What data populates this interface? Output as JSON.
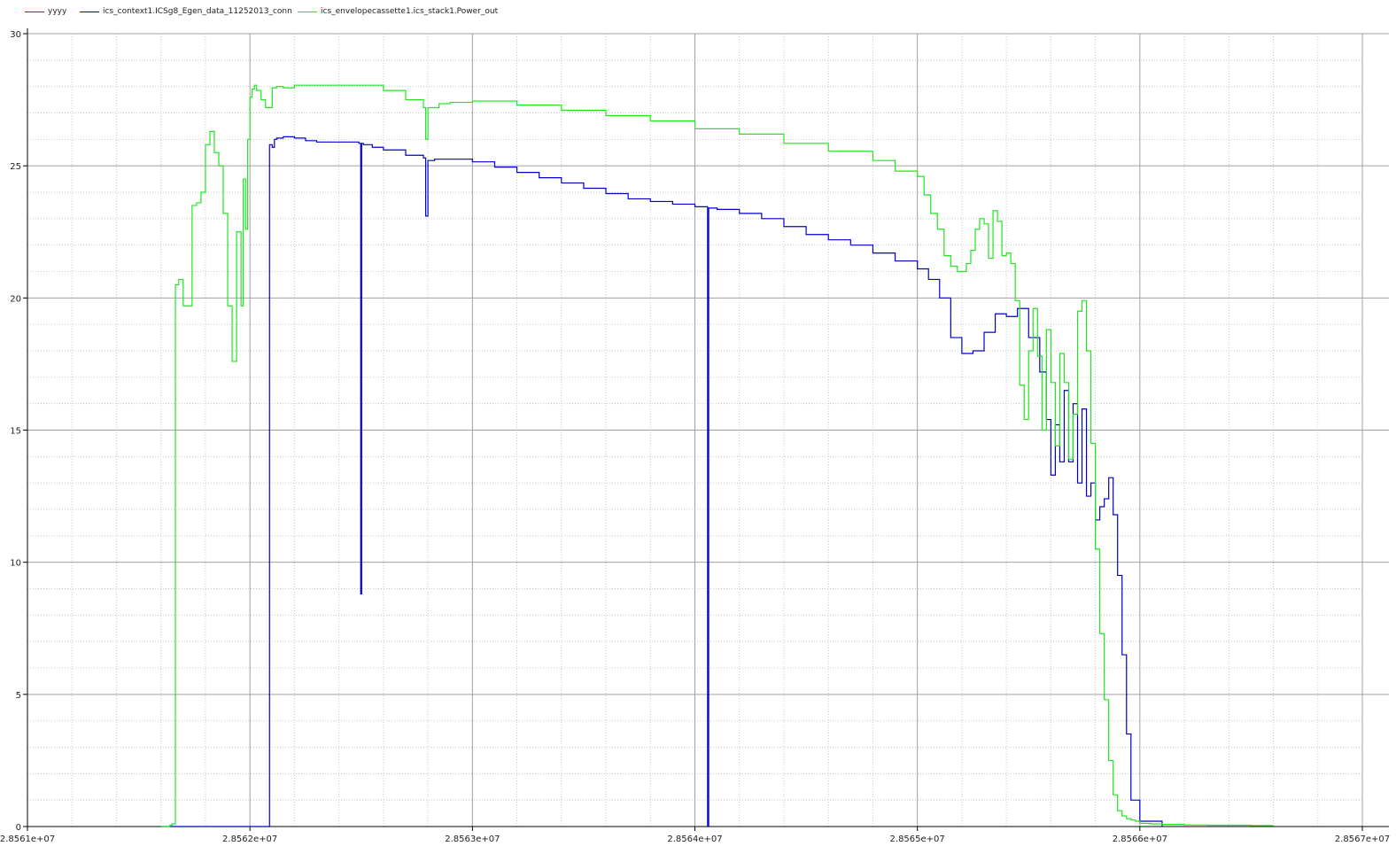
{
  "chart_data": {
    "type": "line",
    "title": "",
    "xlabel": "",
    "ylabel": "",
    "xlim": [
      28561000,
      28567000
    ],
    "ylim": [
      0,
      30
    ],
    "x_ticks": [
      28561000,
      28562000,
      28563000,
      28564000,
      28565000,
      28566000,
      28567000
    ],
    "x_tick_labels": [
      "2.8561e+07",
      "2.8562e+07",
      "2.8563e+07",
      "2.8564e+07",
      "2.8565e+07",
      "2.8566e+07",
      "2.8567e+07"
    ],
    "y_ticks": [
      0,
      5,
      10,
      15,
      20,
      25,
      30
    ],
    "y_tick_labels": [
      "0",
      "5",
      "10",
      "15",
      "20",
      "25",
      "30"
    ],
    "grid": true,
    "legend_position": "top-left",
    "series": [
      {
        "name": "yyyy",
        "color": "#e00000",
        "x": [],
        "y": []
      },
      {
        "name": "ics_context1.ICSg8_Egen_data_11252013_conn",
        "color": "#0000c8",
        "x": [
          28561600,
          28562085,
          28562088,
          28562100,
          28562110,
          28562120,
          28562150,
          28562200,
          28562250,
          28562300,
          28562350,
          28562400,
          28562490,
          28562498,
          28562502,
          28562510,
          28562550,
          28562600,
          28562700,
          28562780,
          28562790,
          28562800,
          28562830,
          28562900,
          28563000,
          28563100,
          28563200,
          28563300,
          28563400,
          28563500,
          28563600,
          28563700,
          28563800,
          28563900,
          28564000,
          28564050,
          28564057,
          28564062,
          28564070,
          28564100,
          28564200,
          28564300,
          28564400,
          28564500,
          28564600,
          28564700,
          28564800,
          28564900,
          28565000,
          28565050,
          28565100,
          28565150,
          28565200,
          28565250,
          28565300,
          28565350,
          28565400,
          28565450,
          28565500,
          28565550,
          28565580,
          28565600,
          28565620,
          28565640,
          28565660,
          28565680,
          28565700,
          28565720,
          28565740,
          28565760,
          28565780,
          28565800,
          28565820,
          28565840,
          28565860,
          28565880,
          28565900,
          28565920,
          28565940,
          28565960,
          28566000,
          28566100
        ],
        "y": [
          0,
          0,
          25.8,
          25.7,
          26.0,
          26.05,
          26.1,
          26.05,
          25.95,
          25.9,
          25.9,
          25.9,
          25.85,
          8.8,
          25.85,
          25.8,
          25.7,
          25.6,
          25.4,
          25.3,
          23.1,
          25.2,
          25.25,
          25.25,
          25.15,
          24.95,
          24.75,
          24.55,
          24.35,
          24.15,
          23.95,
          23.75,
          23.65,
          23.55,
          23.45,
          23.45,
          0,
          23.4,
          23.4,
          23.35,
          23.2,
          23.0,
          22.7,
          22.4,
          22.2,
          22.0,
          21.7,
          21.4,
          21.1,
          20.7,
          20.0,
          18.5,
          17.9,
          18.0,
          18.7,
          19.4,
          19.3,
          19.6,
          18.5,
          17.2,
          15.4,
          13.3,
          15.2,
          13.8,
          16.5,
          13.8,
          16.0,
          13.0,
          15.8,
          12.5,
          13.0,
          11.6,
          12.1,
          12.4,
          13.2,
          11.8,
          9.5,
          6.5,
          3.5,
          1.0,
          0.2,
          0
        ]
      },
      {
        "name": "ics_envelopecassette1.ics_stack1.Power_out",
        "color": "#1fe61f",
        "x": [
          28561600,
          28561640,
          28561650,
          28561665,
          28561680,
          28561700,
          28561720,
          28561740,
          28561760,
          28561780,
          28561800,
          28561820,
          28561840,
          28561860,
          28561880,
          28561900,
          28561920,
          28561940,
          28561960,
          28561970,
          28561980,
          28561990,
          28562000,
          28562010,
          28562020,
          28562030,
          28562050,
          28562070,
          28562100,
          28562120,
          28562150,
          28562200,
          28562300,
          28562400,
          28562500,
          28562600,
          28562700,
          28562780,
          28562790,
          28562800,
          28562850,
          28562900,
          28563000,
          28563200,
          28563400,
          28563600,
          28563800,
          28564000,
          28564200,
          28564400,
          28564600,
          28564800,
          28564900,
          28565000,
          28565030,
          28565060,
          28565090,
          28565120,
          28565150,
          28565180,
          28565200,
          28565220,
          28565240,
          28565260,
          28565280,
          28565300,
          28565320,
          28565340,
          28565360,
          28565380,
          28565400,
          28565420,
          28565440,
          28565460,
          28565480,
          28565500,
          28565520,
          28565540,
          28565560,
          28565580,
          28565600,
          28565620,
          28565640,
          28565660,
          28565680,
          28565700,
          28565720,
          28565740,
          28565760,
          28565780,
          28565800,
          28565820,
          28565840,
          28565860,
          28565880,
          28565900,
          28565920,
          28565940,
          28565960,
          28565980,
          28566000,
          28566050,
          28566100,
          28566200,
          28566300,
          28566400,
          28566450,
          28566500,
          28566600
        ],
        "y": [
          0,
          0.05,
          0.1,
          20.5,
          20.7,
          19.7,
          19.7,
          23.5,
          23.6,
          24.0,
          25.8,
          26.3,
          25.5,
          25.0,
          23.2,
          19.7,
          17.6,
          22.5,
          19.7,
          24.5,
          22.6,
          26.0,
          27.6,
          27.9,
          28.05,
          27.85,
          27.5,
          27.2,
          27.95,
          28.0,
          27.95,
          28.05,
          28.05,
          28.05,
          28.05,
          27.85,
          27.5,
          27.2,
          26.0,
          27.2,
          27.35,
          27.4,
          27.45,
          27.3,
          27.1,
          26.9,
          26.7,
          26.4,
          26.2,
          25.85,
          25.55,
          25.2,
          24.8,
          24.6,
          23.9,
          23.2,
          22.6,
          21.6,
          21.2,
          21.0,
          21.0,
          21.3,
          21.8,
          22.6,
          23.0,
          22.8,
          21.5,
          23.3,
          22.9,
          21.6,
          21.7,
          21.3,
          19.9,
          16.7,
          15.4,
          18.0,
          19.6,
          17.8,
          15.0,
          18.8,
          16.8,
          14.4,
          17.9,
          16.8,
          13.9,
          15.6,
          19.5,
          19.9,
          18.0,
          14.5,
          10.5,
          7.3,
          4.8,
          2.5,
          1.2,
          0.6,
          0.4,
          0.3,
          0.25,
          0.2,
          0.12,
          0.1,
          0.08,
          0.06,
          0.05,
          0.05,
          0.05,
          0.04,
          0.04
        ]
      }
    ]
  }
}
